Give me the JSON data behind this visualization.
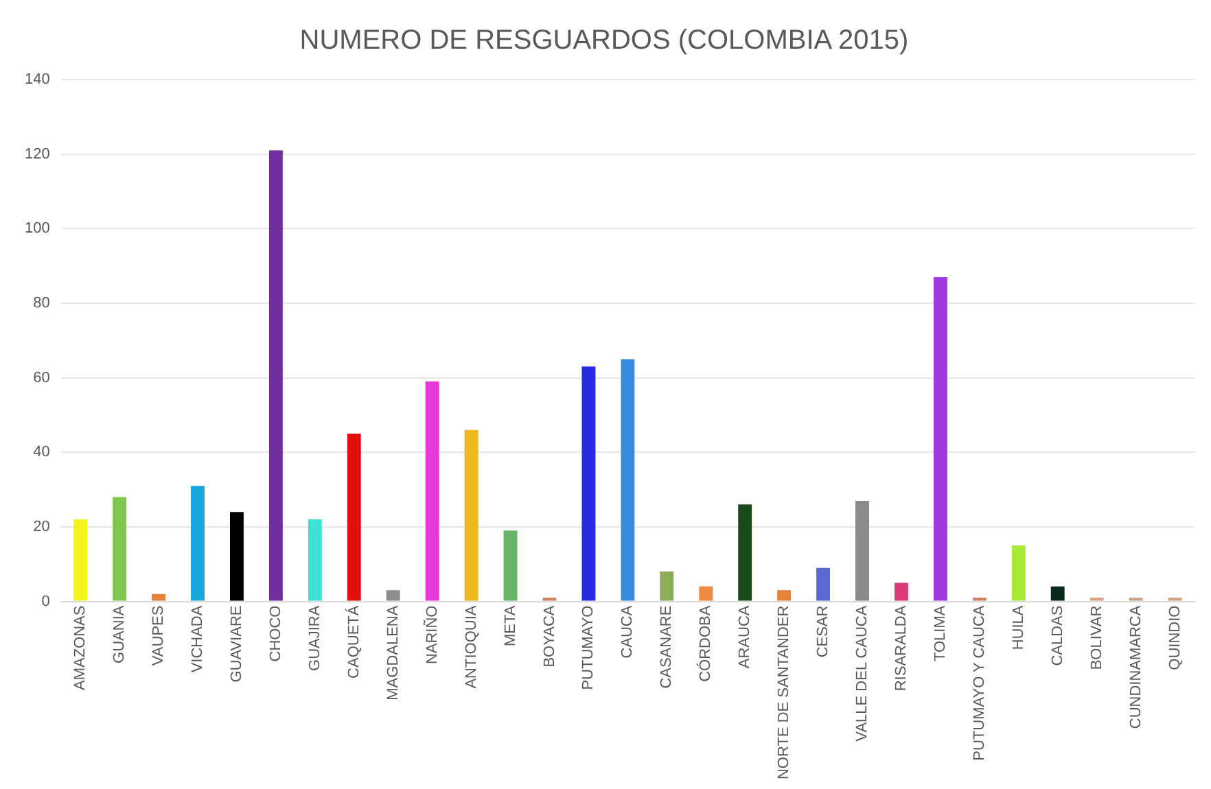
{
  "chart_data": {
    "type": "bar",
    "title": "NUMERO DE RESGUARDOS (COLOMBIA 2015)",
    "categories": [
      "AMAZONAS",
      "GUANIA",
      "VAUPES",
      "VICHADA",
      "GUAVIARE",
      "CHOCO",
      "GUAJIRA",
      "CAQUETÁ",
      "MAGDALENA",
      "NARIÑO",
      "ANTIOQUIA",
      "META",
      "BOYACA",
      "PUTUMAYO",
      "CAUCA",
      "CASANARE",
      "CÓRDOBA",
      "ARAUCA",
      "NORTE DE SANTANDER",
      "CESAR",
      "VALLE DEL CAUCA",
      "RISARALDA",
      "TOLIMA",
      "PUTUMAYO Y CAUCA",
      "HUILA",
      "CALDAS",
      "BOLIVAR",
      "CUNDINAMARCA",
      "QUINDIO"
    ],
    "values": [
      22,
      28,
      2,
      31,
      24,
      121,
      22,
      45,
      3,
      59,
      46,
      19,
      1,
      63,
      65,
      8,
      4,
      26,
      3,
      9,
      27,
      5,
      87,
      1,
      15,
      4,
      1,
      1,
      1
    ],
    "colors": [
      "#f5f51e",
      "#7ec850",
      "#e8823a",
      "#1aa7e0",
      "#000000",
      "#7030a0",
      "#3ee0d8",
      "#e01010",
      "#8c8c8c",
      "#e838d8",
      "#f0b820",
      "#6ab46a",
      "#d08060",
      "#2a2ae0",
      "#3a8ae0",
      "#8cac5a",
      "#f08a40",
      "#1a4a1a",
      "#e8823a",
      "#5a6ad0",
      "#8a8a8a",
      "#d83a7a",
      "#a03ae0",
      "#d08060",
      "#a8e838",
      "#0a2a1a",
      "#e0a080",
      "#d0a080",
      "#d0a080"
    ],
    "ylim": [
      0,
      140
    ],
    "yticks": [
      0,
      20,
      40,
      60,
      80,
      100,
      120,
      140
    ],
    "grid": "y",
    "legend": false
  }
}
